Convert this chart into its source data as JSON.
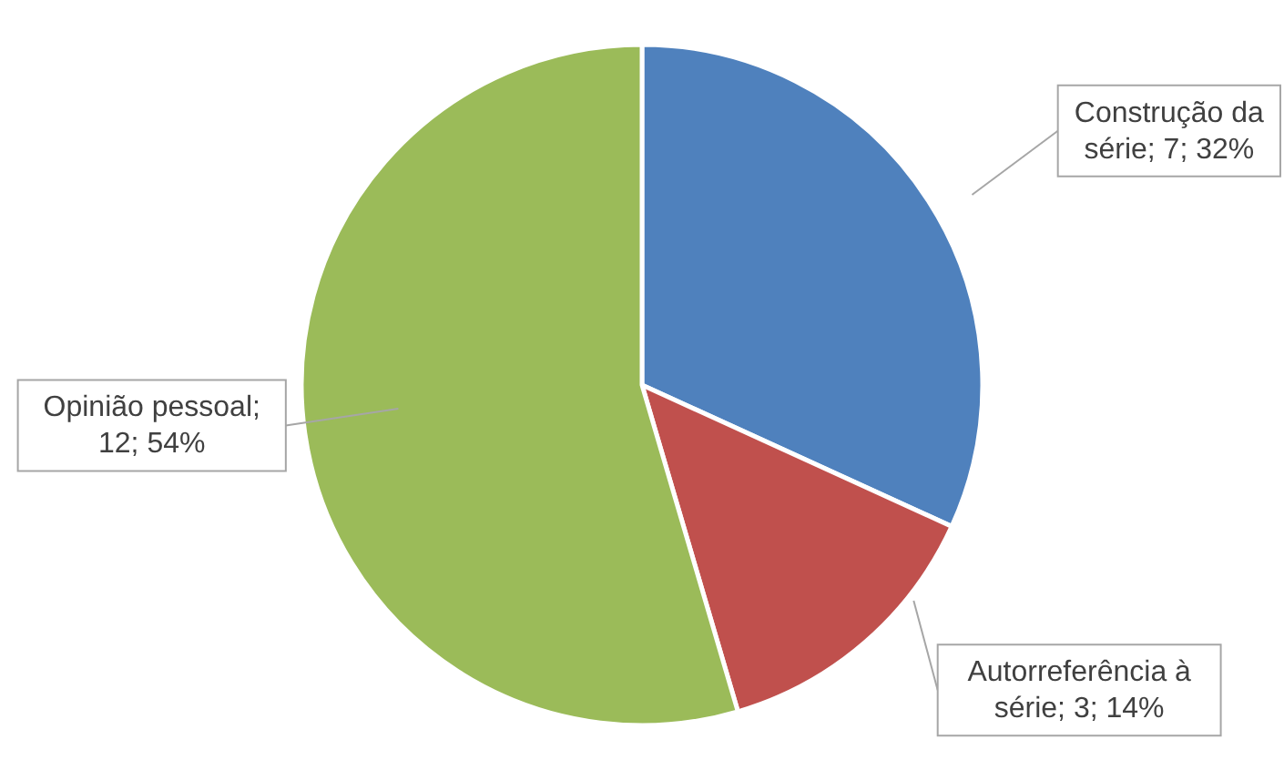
{
  "chart_data": {
    "type": "pie",
    "values": [
      7,
      3,
      12
    ],
    "colors": [
      "#4f81bd",
      "#c0504d",
      "#9bbb59"
    ],
    "value_labels": [
      "Construção da série; 7; 32%",
      "Autorreferência à série; 3; 14%",
      "Opinião pessoal; 12; 54%"
    ]
  }
}
